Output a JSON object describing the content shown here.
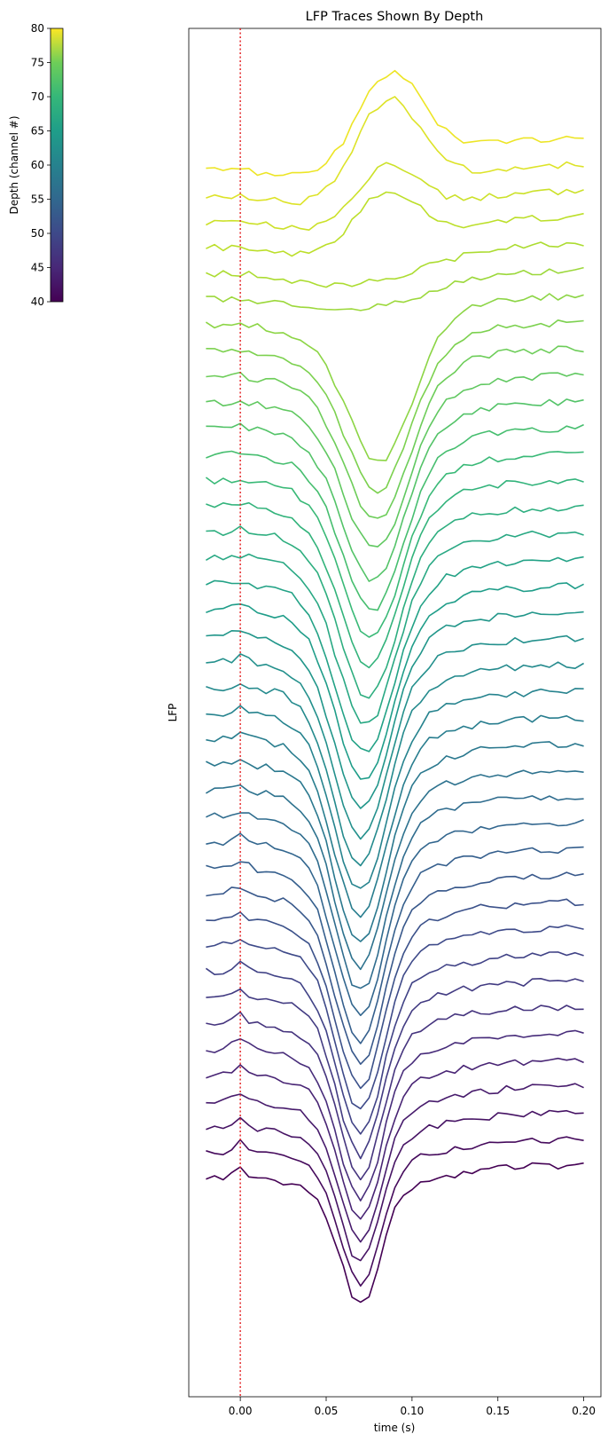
{
  "chart_data": {
    "type": "line",
    "title": "LFP Traces Shown By Depth",
    "xlabel": "time (s)",
    "ylabel": "LFP",
    "xlim": [
      -0.03,
      0.21
    ],
    "x_ticks": [
      0.0,
      0.05,
      0.1,
      0.15,
      0.2
    ],
    "x_tick_labels": [
      "0.00",
      "0.05",
      "0.10",
      "0.15",
      "0.20"
    ],
    "y_ticks_shown": false,
    "grid": false,
    "legend": "none",
    "stimulus_marker": {
      "x": 0.0,
      "color": "#e41a1c",
      "style": "dotted"
    },
    "colorbar": {
      "label": "Depth (channel #)",
      "colormap": "viridis",
      "range": [
        40,
        80
      ],
      "ticks": [
        40,
        45,
        50,
        55,
        60,
        65,
        70,
        75,
        80
      ],
      "tick_labels": [
        "40",
        "45",
        "50",
        "55",
        "60",
        "65",
        "70",
        "75",
        "80"
      ],
      "position": "top-left"
    },
    "series_note": "40 traces, one per channel, depths 40 through 79, vertically offset by depth (deeper channels lower)",
    "channels": [
      40,
      41,
      42,
      43,
      44,
      45,
      46,
      47,
      48,
      49,
      50,
      51,
      52,
      53,
      54,
      55,
      56,
      57,
      58,
      59,
      60,
      61,
      62,
      63,
      64,
      65,
      66,
      67,
      68,
      69,
      70,
      71,
      72,
      73,
      74,
      75,
      76,
      77,
      78,
      79
    ],
    "time_range": [
      -0.02,
      0.2
    ],
    "time_step": 0.005,
    "trough_time": 0.07,
    "trough_time_shallow": 0.085,
    "peak_time_top": 0.078
  },
  "colors": {
    "stimulus_line": "#e41a1c",
    "axes": "#000000",
    "background": "#ffffff"
  }
}
